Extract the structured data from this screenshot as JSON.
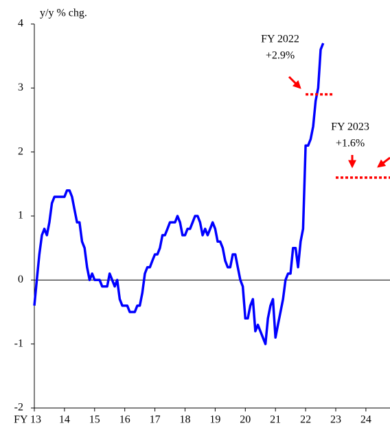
{
  "chart_data": {
    "type": "line",
    "y_axis_label": "y/y % chg.",
    "xlim": [
      13,
      24.8
    ],
    "ylim": [
      -2,
      4
    ],
    "xticks": [
      {
        "value": 13,
        "label": "FY 13"
      },
      14,
      15,
      16,
      17,
      18,
      19,
      20,
      21,
      22,
      23,
      24
    ],
    "yticks": [
      -2,
      -1,
      0,
      1,
      2,
      3,
      4
    ],
    "series": [
      {
        "color": "#0000ff",
        "x": [
          13.0,
          13.083,
          13.167,
          13.25,
          13.333,
          13.417,
          13.5,
          13.583,
          13.667,
          13.75,
          13.833,
          13.917,
          14.0,
          14.083,
          14.167,
          14.25,
          14.333,
          14.417,
          14.5,
          14.583,
          14.667,
          14.75,
          14.833,
          14.917,
          15.0,
          15.083,
          15.167,
          15.25,
          15.333,
          15.417,
          15.5,
          15.583,
          15.667,
          15.75,
          15.833,
          15.917,
          16.0,
          16.083,
          16.167,
          16.25,
          16.333,
          16.417,
          16.5,
          16.583,
          16.667,
          16.75,
          16.833,
          16.917,
          17.0,
          17.083,
          17.167,
          17.25,
          17.333,
          17.417,
          17.5,
          17.583,
          17.667,
          17.75,
          17.833,
          17.917,
          18.0,
          18.083,
          18.167,
          18.25,
          18.333,
          18.417,
          18.5,
          18.583,
          18.667,
          18.75,
          18.833,
          18.917,
          19.0,
          19.083,
          19.167,
          19.25,
          19.333,
          19.417,
          19.5,
          19.583,
          19.667,
          19.75,
          19.833,
          19.917,
          20.0,
          20.083,
          20.167,
          20.25,
          20.333,
          20.417,
          20.5,
          20.583,
          20.667,
          20.75,
          20.833,
          20.917,
          21.0,
          21.083,
          21.167,
          21.25,
          21.333,
          21.417,
          21.5,
          21.583,
          21.667,
          21.75,
          21.833,
          21.917,
          22.0,
          22.083,
          22.167,
          22.25,
          22.333,
          22.417,
          22.5,
          22.583
        ],
        "values": [
          -0.4,
          0.0,
          0.4,
          0.7,
          0.8,
          0.7,
          0.9,
          1.2,
          1.3,
          1.3,
          1.3,
          1.3,
          1.3,
          1.4,
          1.4,
          1.3,
          1.1,
          0.9,
          0.9,
          0.6,
          0.5,
          0.2,
          0.0,
          0.1,
          0.0,
          0.0,
          0.0,
          -0.1,
          -0.1,
          -0.1,
          0.1,
          0.0,
          -0.1,
          0.0,
          -0.3,
          -0.4,
          -0.4,
          -0.4,
          -0.5,
          -0.5,
          -0.5,
          -0.4,
          -0.4,
          -0.2,
          0.1,
          0.2,
          0.2,
          0.3,
          0.4,
          0.4,
          0.5,
          0.7,
          0.7,
          0.8,
          0.9,
          0.9,
          0.9,
          1.0,
          0.9,
          0.7,
          0.7,
          0.8,
          0.8,
          0.9,
          1.0,
          1.0,
          0.9,
          0.7,
          0.8,
          0.7,
          0.8,
          0.9,
          0.8,
          0.6,
          0.6,
          0.5,
          0.3,
          0.2,
          0.2,
          0.4,
          0.4,
          0.2,
          0.0,
          -0.1,
          -0.6,
          -0.6,
          -0.4,
          -0.3,
          -0.8,
          -0.7,
          -0.8,
          -0.9,
          -1.0,
          -0.6,
          -0.4,
          -0.3,
          -0.9,
          -0.7,
          -0.5,
          -0.3,
          0.0,
          0.1,
          0.1,
          0.5,
          0.5,
          0.2,
          0.6,
          0.8,
          2.1,
          2.1,
          2.2,
          2.4,
          2.8,
          3.0,
          3.6,
          3.7
        ]
      }
    ],
    "forecasts": [
      {
        "label": "FY 2022",
        "value_label": "+2.9%",
        "value": 2.9,
        "x": [
          22.0,
          22.9
        ],
        "color": "#ff0000"
      },
      {
        "label": "FY 2023",
        "value_label": "+1.6%",
        "value": 1.6,
        "x": [
          23.0,
          24.8
        ],
        "color": "#ff0000"
      }
    ]
  }
}
